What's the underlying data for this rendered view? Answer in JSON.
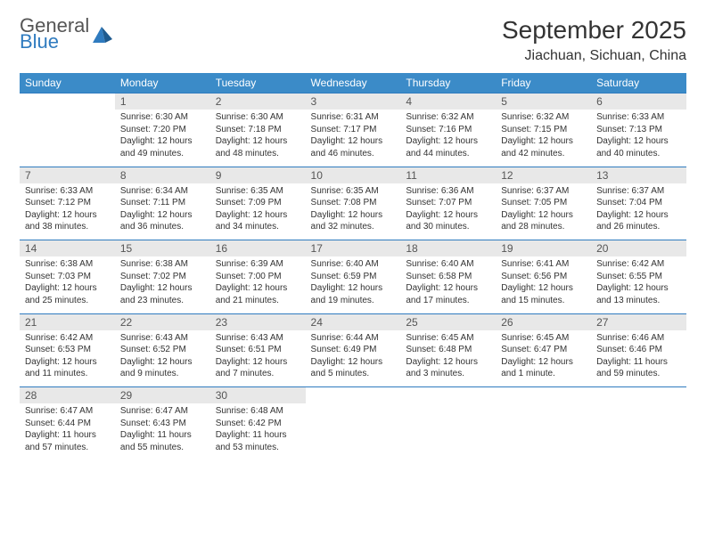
{
  "header": {
    "logo_top": "General",
    "logo_bottom": "Blue",
    "month_title": "September 2025",
    "location": "Jiachuan, Sichuan, China"
  },
  "colors": {
    "header_bg": "#3b8bc8",
    "rule": "#2f7bbf",
    "daynum_bg": "#e8e8e8",
    "logo_blue": "#2f7bbf"
  },
  "day_names": [
    "Sunday",
    "Monday",
    "Tuesday",
    "Wednesday",
    "Thursday",
    "Friday",
    "Saturday"
  ],
  "weeks": [
    [
      null,
      {
        "n": "1",
        "sr": "6:30 AM",
        "ss": "7:20 PM",
        "dl": "12 hours and 49 minutes."
      },
      {
        "n": "2",
        "sr": "6:30 AM",
        "ss": "7:18 PM",
        "dl": "12 hours and 48 minutes."
      },
      {
        "n": "3",
        "sr": "6:31 AM",
        "ss": "7:17 PM",
        "dl": "12 hours and 46 minutes."
      },
      {
        "n": "4",
        "sr": "6:32 AM",
        "ss": "7:16 PM",
        "dl": "12 hours and 44 minutes."
      },
      {
        "n": "5",
        "sr": "6:32 AM",
        "ss": "7:15 PM",
        "dl": "12 hours and 42 minutes."
      },
      {
        "n": "6",
        "sr": "6:33 AM",
        "ss": "7:13 PM",
        "dl": "12 hours and 40 minutes."
      }
    ],
    [
      {
        "n": "7",
        "sr": "6:33 AM",
        "ss": "7:12 PM",
        "dl": "12 hours and 38 minutes."
      },
      {
        "n": "8",
        "sr": "6:34 AM",
        "ss": "7:11 PM",
        "dl": "12 hours and 36 minutes."
      },
      {
        "n": "9",
        "sr": "6:35 AM",
        "ss": "7:09 PM",
        "dl": "12 hours and 34 minutes."
      },
      {
        "n": "10",
        "sr": "6:35 AM",
        "ss": "7:08 PM",
        "dl": "12 hours and 32 minutes."
      },
      {
        "n": "11",
        "sr": "6:36 AM",
        "ss": "7:07 PM",
        "dl": "12 hours and 30 minutes."
      },
      {
        "n": "12",
        "sr": "6:37 AM",
        "ss": "7:05 PM",
        "dl": "12 hours and 28 minutes."
      },
      {
        "n": "13",
        "sr": "6:37 AM",
        "ss": "7:04 PM",
        "dl": "12 hours and 26 minutes."
      }
    ],
    [
      {
        "n": "14",
        "sr": "6:38 AM",
        "ss": "7:03 PM",
        "dl": "12 hours and 25 minutes."
      },
      {
        "n": "15",
        "sr": "6:38 AM",
        "ss": "7:02 PM",
        "dl": "12 hours and 23 minutes."
      },
      {
        "n": "16",
        "sr": "6:39 AM",
        "ss": "7:00 PM",
        "dl": "12 hours and 21 minutes."
      },
      {
        "n": "17",
        "sr": "6:40 AM",
        "ss": "6:59 PM",
        "dl": "12 hours and 19 minutes."
      },
      {
        "n": "18",
        "sr": "6:40 AM",
        "ss": "6:58 PM",
        "dl": "12 hours and 17 minutes."
      },
      {
        "n": "19",
        "sr": "6:41 AM",
        "ss": "6:56 PM",
        "dl": "12 hours and 15 minutes."
      },
      {
        "n": "20",
        "sr": "6:42 AM",
        "ss": "6:55 PM",
        "dl": "12 hours and 13 minutes."
      }
    ],
    [
      {
        "n": "21",
        "sr": "6:42 AM",
        "ss": "6:53 PM",
        "dl": "12 hours and 11 minutes."
      },
      {
        "n": "22",
        "sr": "6:43 AM",
        "ss": "6:52 PM",
        "dl": "12 hours and 9 minutes."
      },
      {
        "n": "23",
        "sr": "6:43 AM",
        "ss": "6:51 PM",
        "dl": "12 hours and 7 minutes."
      },
      {
        "n": "24",
        "sr": "6:44 AM",
        "ss": "6:49 PM",
        "dl": "12 hours and 5 minutes."
      },
      {
        "n": "25",
        "sr": "6:45 AM",
        "ss": "6:48 PM",
        "dl": "12 hours and 3 minutes."
      },
      {
        "n": "26",
        "sr": "6:45 AM",
        "ss": "6:47 PM",
        "dl": "12 hours and 1 minute."
      },
      {
        "n": "27",
        "sr": "6:46 AM",
        "ss": "6:46 PM",
        "dl": "11 hours and 59 minutes."
      }
    ],
    [
      {
        "n": "28",
        "sr": "6:47 AM",
        "ss": "6:44 PM",
        "dl": "11 hours and 57 minutes."
      },
      {
        "n": "29",
        "sr": "6:47 AM",
        "ss": "6:43 PM",
        "dl": "11 hours and 55 minutes."
      },
      {
        "n": "30",
        "sr": "6:48 AM",
        "ss": "6:42 PM",
        "dl": "11 hours and 53 minutes."
      },
      null,
      null,
      null,
      null
    ]
  ],
  "labels": {
    "sunrise": "Sunrise:",
    "sunset": "Sunset:",
    "daylight": "Daylight:"
  }
}
